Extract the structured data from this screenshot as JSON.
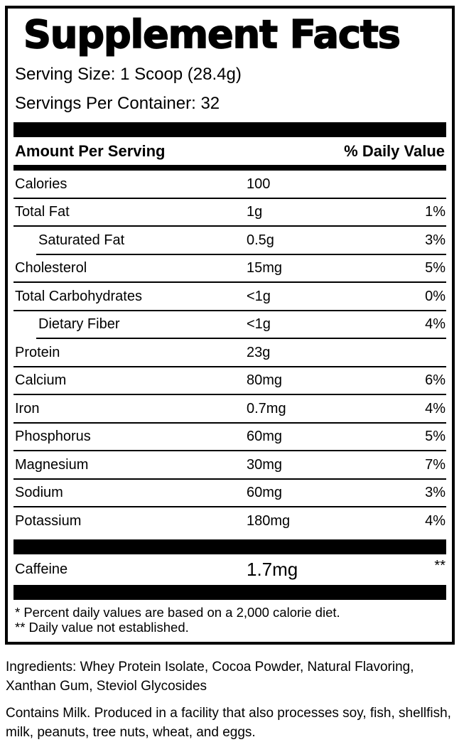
{
  "label": {
    "title": "Supplement Facts",
    "serving_size": "Serving Size: 1 Scoop (28.4g)",
    "servings_per_container": "Servings Per Container: 32",
    "header": {
      "left": "Amount Per Serving",
      "right": "% Daily Value"
    },
    "rows": [
      {
        "name": "Calories",
        "amount": "100",
        "dv": "",
        "indent": false
      },
      {
        "name": "Total Fat",
        "amount": "1g",
        "dv": "1%",
        "indent": false
      },
      {
        "name": "Saturated Fat",
        "amount": "0.5g",
        "dv": "3%",
        "indent": true
      },
      {
        "name": "Cholesterol",
        "amount": "15mg",
        "dv": "5%",
        "indent": false
      },
      {
        "name": "Total Carbohydrates",
        "amount": "<1g",
        "dv": "0%",
        "indent": false
      },
      {
        "name": "Dietary Fiber",
        "amount": "<1g",
        "dv": "4%",
        "indent": true
      },
      {
        "name": "Protein",
        "amount": "23g",
        "dv": "",
        "indent": false
      },
      {
        "name": "Calcium",
        "amount": "80mg",
        "dv": "6%",
        "indent": false
      },
      {
        "name": "Iron",
        "amount": "0.7mg",
        "dv": "4%",
        "indent": false
      },
      {
        "name": "Phosphorus",
        "amount": "60mg",
        "dv": "5%",
        "indent": false
      },
      {
        "name": "Magnesium",
        "amount": "30mg",
        "dv": "7%",
        "indent": false
      },
      {
        "name": "Sodium",
        "amount": "60mg",
        "dv": "3%",
        "indent": false
      },
      {
        "name": "Potassium",
        "amount": "180mg",
        "dv": "4%",
        "indent": false
      }
    ],
    "caffeine_row": {
      "name": "Caffeine",
      "amount": "1.7mg",
      "dv": "**"
    },
    "footnotes": [
      "* Percent daily values are based on a 2,000 calorie diet.",
      "** Daily value not established."
    ],
    "colors": {
      "ink": "#000000",
      "background": "#ffffff"
    }
  },
  "below": {
    "ingredients": "Ingredients: Whey Protein Isolate, Cocoa Powder, Natural Flavoring, Xanthan Gum, Steviol Glycosides",
    "allergen": "Contains Milk. Produced in a facility that also processes soy, fish, shellfish, milk, peanuts, tree nuts, wheat, and eggs."
  }
}
